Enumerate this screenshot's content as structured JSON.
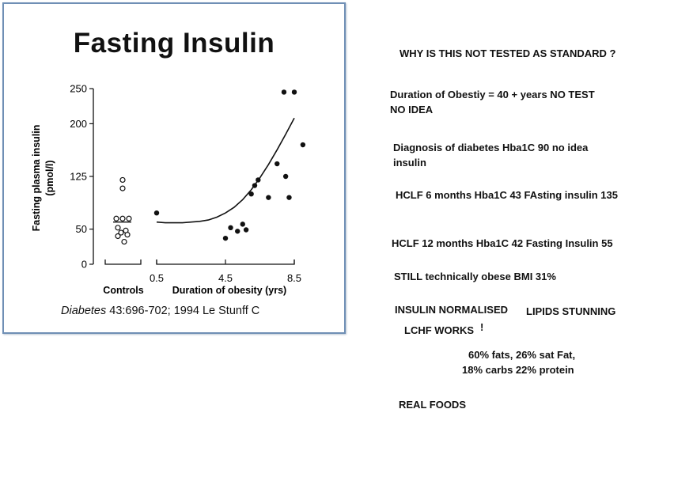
{
  "chart_data": {
    "type": "scatter",
    "title": "Fasting Insulin",
    "ylabel": "Fasting plasma insulin",
    "ylabel_unit": "(pmol/l)",
    "xlabel": "Duration of obesity (yrs)",
    "control_label": "Controls",
    "yticks": [
      0,
      50,
      125,
      200,
      250
    ],
    "xticks": [
      0.5,
      4.5,
      8.5
    ],
    "ylim": [
      0,
      250
    ],
    "xlim": [
      0.5,
      8.5
    ],
    "grid": false,
    "controls": {
      "values": [
        120,
        108,
        65,
        65,
        65,
        52,
        48,
        45,
        42,
        40,
        32
      ],
      "mean": 60
    },
    "obese": {
      "x": [
        0.5,
        4.5,
        4.8,
        5.2,
        5.5,
        5.7,
        6.0,
        6.2,
        6.4,
        7.0,
        7.5,
        7.9,
        8.0,
        8.2,
        8.5,
        9.0
      ],
      "y": [
        73,
        37,
        52,
        47,
        57,
        49,
        100,
        112,
        120,
        95,
        143,
        245,
        125,
        95,
        245,
        170
      ]
    },
    "trend": {
      "x": [
        0.5,
        1.0,
        1.5,
        2.0,
        2.5,
        3.0,
        3.5,
        4.0,
        4.5,
        5.0,
        5.5,
        6.0,
        6.5,
        7.0,
        7.5,
        8.0,
        8.5
      ],
      "y": [
        60,
        59,
        59,
        59,
        60,
        61,
        63,
        67,
        73,
        81,
        92,
        106,
        123,
        142,
        163,
        185,
        208
      ]
    }
  },
  "citation": {
    "journal": "Diabetes",
    "rest": " 43:696-702; 1994 Le Stunff C"
  },
  "notes": [
    "WHY IS THIS NOT TESTED AS STANDARD ?",
    "Duration of Obestiy  = 40 + years NO TEST",
    "NO IDEA",
    "Diagnosis of diabetes Hba1C 90  no idea",
    "insulin",
    "HCLF 6 months Hba1C 43  FAsting insulin 135",
    "HCLF 12 months Hba1C 42 Fasting Insulin 55",
    "STILL technically obese BMI 31%",
    "INSULIN NORMALISED",
    "LIPIDS STUNNING",
    "LCHF WORKS",
    "!",
    "60% fats, 26% sat Fat,",
    "18% carbs 22% protein",
    "REAL FOODS"
  ]
}
